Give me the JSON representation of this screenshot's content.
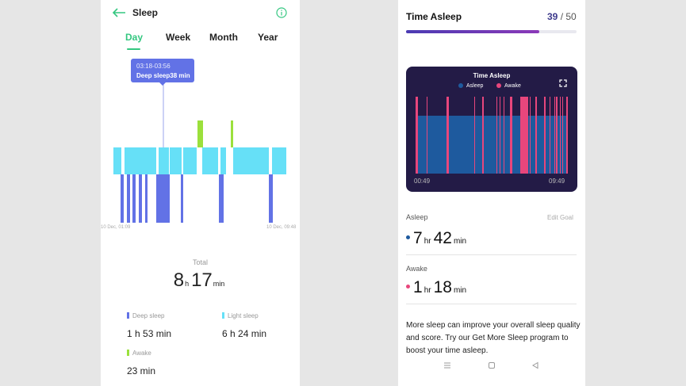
{
  "left": {
    "title": "Sleep",
    "tabs": [
      "Day",
      "Week",
      "Month",
      "Year"
    ],
    "tooltip": {
      "time": "03:18-03:56",
      "detail": "Deep sleep38 min"
    },
    "axis_start": "10 Dec, 01:09",
    "axis_end": "10 Dec, 09:48",
    "total_label": "Total",
    "total_hours": "8",
    "total_h_unit": "h",
    "total_minutes": "17",
    "total_min_unit": "min",
    "stats": [
      {
        "label": "Deep sleep",
        "value": "1 h 53 min",
        "color": "#6272e6"
      },
      {
        "label": "Light sleep",
        "value": "6 h 24 min",
        "color": "#66e0f7"
      },
      {
        "label": "Awake",
        "value": "23 min",
        "color": "#9be03c"
      }
    ],
    "colors": {
      "accent": "#34c780",
      "deep": "#6272e6",
      "light": "#66e0f7",
      "awake": "#9be03c"
    }
  },
  "right": {
    "title": "Time Asleep",
    "score": "39",
    "score_max": "/ 50",
    "progress": 0.78,
    "card": {
      "title": "Time Asleep",
      "legend": [
        "Asleep",
        "Awake"
      ],
      "start": "00:49",
      "end": "09:49",
      "colors": {
        "bg": "#231b46",
        "asleep": "#1e5a9e",
        "awake": "#e8467c"
      }
    },
    "asleep_label": "Asleep",
    "edit_goal": "Edit Goal",
    "asleep_hr": "7",
    "asleep_min": "42",
    "awake_label": "Awake",
    "awake_hr": "1",
    "awake_min": "18",
    "hr_unit": "hr",
    "min_unit": "min",
    "message": "More sleep can improve your overall sleep quality and score. Try our Get More Sleep program to boost your time asleep."
  }
}
